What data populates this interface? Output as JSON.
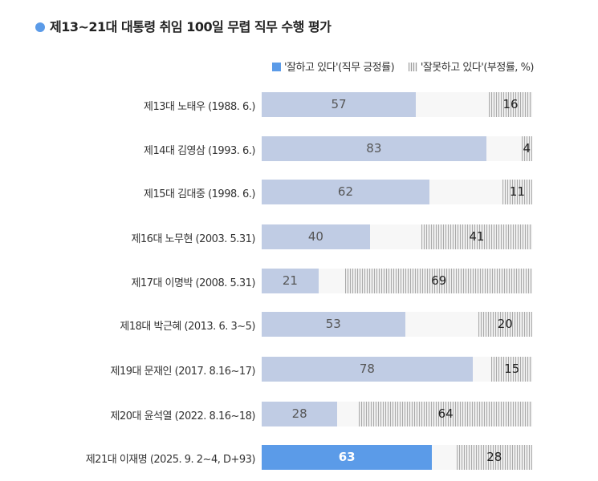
{
  "chart_data": {
    "type": "bar",
    "title": "제13~21대 대통령 취임 100일 무렵 직무 수행 평가",
    "legend": [
      "'잘하고 있다'(직무 긍정률)",
      "'잘못하고 있다'(부정률, %)"
    ],
    "legend_placement": "top-right",
    "categories": [
      "제13대 노태우 (1988. 6.)",
      "제14대 김영삼 (1993. 6.)",
      "제15대 김대중 (1998. 6.)",
      "제16대 노무현 (2003. 5.31)",
      "제17대 이명박 (2008. 5.31)",
      "제18대 박근혜 (2013. 6. 3~5)",
      "제19대 문재인 (2017. 8.16~17)",
      "제20대 윤석열 (2022. 8.16~18)",
      "제21대 이재명 (2025. 9. 2~4, D+93)"
    ],
    "series": [
      {
        "name": "'잘하고 있다'(직무 긍정률)",
        "values": [
          57,
          83,
          62,
          40,
          21,
          53,
          78,
          28,
          63
        ],
        "color": "#c0cce4",
        "highlight_color": "#5b9be8"
      },
      {
        "name": "'잘못하고 있다'(부정률, %)",
        "values": [
          16,
          4,
          11,
          41,
          69,
          20,
          15,
          64,
          28
        ],
        "color": "#aaaaaa"
      }
    ],
    "xlim": [
      0,
      100
    ],
    "grid": false
  }
}
